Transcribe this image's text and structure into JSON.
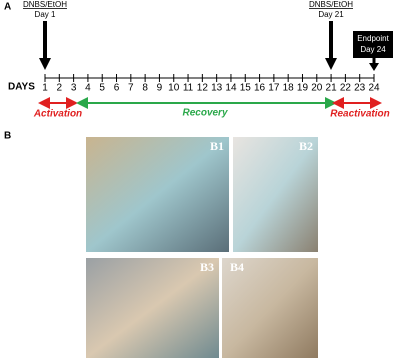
{
  "panel_a": {
    "label": "A",
    "axis_label": "DAYS",
    "days": [
      1,
      2,
      3,
      4,
      5,
      6,
      7,
      8,
      9,
      10,
      11,
      12,
      13,
      14,
      15,
      16,
      17,
      18,
      19,
      20,
      21,
      22,
      23,
      24
    ],
    "events": [
      {
        "treatment": "DNBS/EtOH",
        "day": "Day 1"
      },
      {
        "treatment": "DNBS/EtOH",
        "day": "Day 21"
      },
      {
        "treatment": "Endpoint",
        "day": "Day 24"
      }
    ],
    "phases": [
      "Activation",
      "Recovery",
      "Reactivation"
    ]
  },
  "panel_b": {
    "label": "B",
    "photos": [
      "B1",
      "B2",
      "B3",
      "B4"
    ]
  }
}
